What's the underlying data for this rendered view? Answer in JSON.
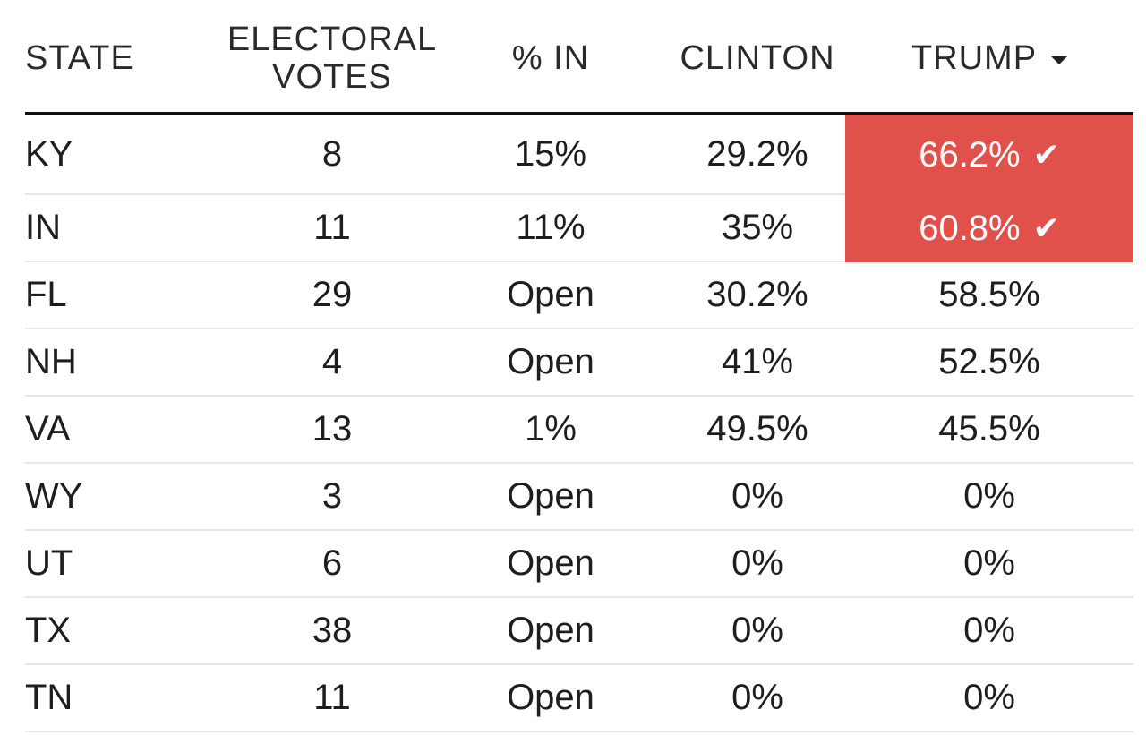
{
  "headers": {
    "state": "STATE",
    "ev_line1": "ELECTORAL",
    "ev_line2": "VOTES",
    "pct_in": "% IN",
    "clinton": "CLINTON",
    "trump": "TRUMP",
    "sort_icon": "caret-down-icon"
  },
  "colors": {
    "winner_bg": "#e0514c",
    "winner_text": "#ffffff"
  },
  "rows": [
    {
      "state": "KY",
      "ev": "8",
      "pct_in": "15%",
      "clinton": "29.2%",
      "trump": "66.2%",
      "trump_winner": true,
      "check": "✔"
    },
    {
      "state": "IN",
      "ev": "11",
      "pct_in": "11%",
      "clinton": "35%",
      "trump": "60.8%",
      "trump_winner": true,
      "check": "✔"
    },
    {
      "state": "FL",
      "ev": "29",
      "pct_in": "Open",
      "clinton": "30.2%",
      "trump": "58.5%",
      "trump_winner": false
    },
    {
      "state": "NH",
      "ev": "4",
      "pct_in": "Open",
      "clinton": "41%",
      "trump": "52.5%",
      "trump_winner": false
    },
    {
      "state": "VA",
      "ev": "13",
      "pct_in": "1%",
      "clinton": "49.5%",
      "trump": "45.5%",
      "trump_winner": false
    },
    {
      "state": "WY",
      "ev": "3",
      "pct_in": "Open",
      "clinton": "0%",
      "trump": "0%",
      "trump_winner": false
    },
    {
      "state": "UT",
      "ev": "6",
      "pct_in": "Open",
      "clinton": "0%",
      "trump": "0%",
      "trump_winner": false
    },
    {
      "state": "TX",
      "ev": "38",
      "pct_in": "Open",
      "clinton": "0%",
      "trump": "0%",
      "trump_winner": false
    },
    {
      "state": "TN",
      "ev": "11",
      "pct_in": "Open",
      "clinton": "0%",
      "trump": "0%",
      "trump_winner": false
    }
  ]
}
